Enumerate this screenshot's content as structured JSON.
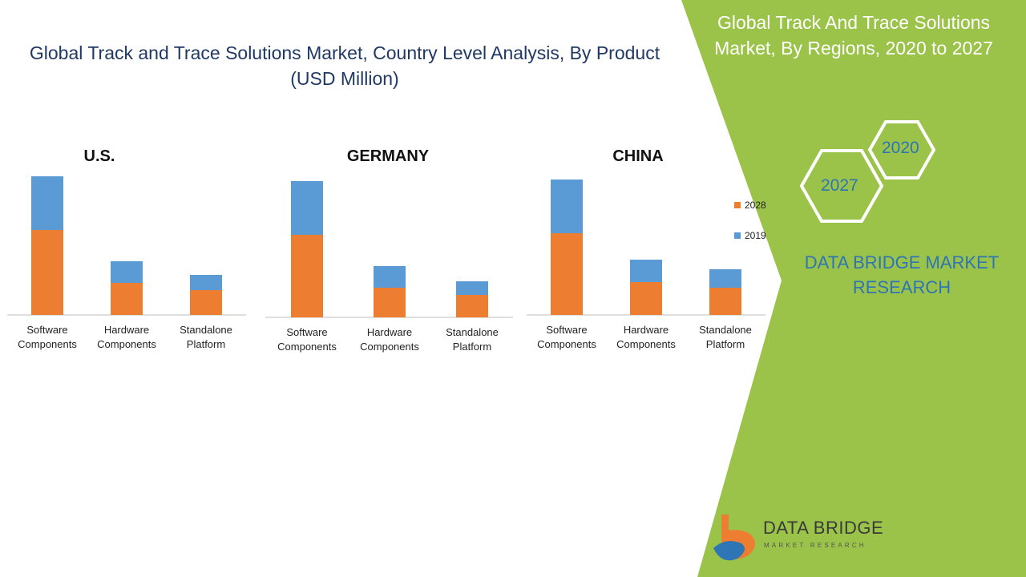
{
  "colors": {
    "series_2028": "#ed7d31",
    "series_2019": "#5b9bd5",
    "green_panel": "#9bc349",
    "title_blue": "#203864",
    "accent_blue": "#2e75b6"
  },
  "header": {
    "title": "Global Track and Trace Solutions Market, Country Level Analysis, By Product (USD Million)"
  },
  "right_panel": {
    "title": "Global Track And Trace Solutions Market, By Regions, 2020 to 2027",
    "hex_year_a": "2020",
    "hex_year_b": "2027",
    "brand_text": "DATA BRIDGE MARKET RESEARCH",
    "logo_main": "DATA BRIDGE",
    "logo_sub": "MARKET RESEARCH"
  },
  "legend": [
    {
      "label": "2028",
      "color": "#ed7d31"
    },
    {
      "label": "2019",
      "color": "#5b9bd5"
    }
  ],
  "chart_data": [
    {
      "type": "bar",
      "stacked": true,
      "title": "U.S.",
      "categories": [
        "Software Components",
        "Hardware Components",
        "Standalone Platform"
      ],
      "series": [
        {
          "name": "2028",
          "values": [
            106,
            40,
            31
          ]
        },
        {
          "name": "2019",
          "values": [
            67,
            27,
            19
          ]
        }
      ]
    },
    {
      "type": "bar",
      "stacked": true,
      "title": "GERMANY",
      "categories": [
        "Software Components",
        "Hardware Components",
        "Standalone Platform"
      ],
      "series": [
        {
          "name": "2028",
          "values": [
            103,
            37,
            28
          ]
        },
        {
          "name": "2019",
          "values": [
            67,
            27,
            17
          ]
        }
      ]
    },
    {
      "type": "bar",
      "stacked": true,
      "title": "CHINA",
      "categories": [
        "Software Components",
        "Hardware Components",
        "Standalone Platform"
      ],
      "series": [
        {
          "name": "2028",
          "values": [
            102,
            41,
            34
          ]
        },
        {
          "name": "2019",
          "values": [
            67,
            28,
            23
          ]
        }
      ],
      "legend_position": "right"
    }
  ]
}
